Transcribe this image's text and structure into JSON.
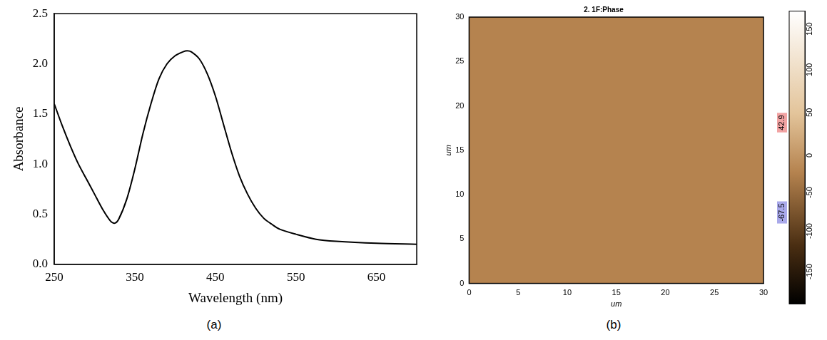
{
  "chart_data": [
    {
      "panel": "(a)",
      "type": "line",
      "x_label": "Wavelength (nm)",
      "y_label": "Absorbance",
      "x": [
        250,
        260,
        270,
        280,
        290,
        300,
        310,
        320,
        325,
        330,
        340,
        350,
        360,
        370,
        380,
        390,
        400,
        410,
        415,
        420,
        430,
        440,
        450,
        460,
        470,
        480,
        490,
        500,
        510,
        520,
        530,
        550,
        575,
        600,
        650,
        700
      ],
      "values": [
        1.6,
        1.38,
        1.18,
        1.0,
        0.85,
        0.7,
        0.55,
        0.43,
        0.41,
        0.45,
        0.65,
        0.95,
        1.3,
        1.6,
        1.85,
        2.0,
        2.08,
        2.12,
        2.13,
        2.12,
        2.05,
        1.9,
        1.68,
        1.4,
        1.12,
        0.88,
        0.7,
        0.56,
        0.46,
        0.4,
        0.35,
        0.3,
        0.25,
        0.23,
        0.21,
        0.2
      ],
      "color": "#000000",
      "xlim": [
        250,
        700
      ],
      "xticks": [
        250,
        350,
        450,
        550,
        650
      ],
      "ylim": [
        0,
        2.5
      ],
      "yticks": [
        {
          "value": 0,
          "label": "0.0"
        },
        0.5,
        {
          "value": 1,
          "label": "1.0"
        },
        1.5,
        {
          "value": 2,
          "label": "2.0"
        },
        2.5
      ],
      "grid": false
    },
    {
      "panel": "(b)",
      "type": "heatmap",
      "title": "2. 1F:Phase",
      "x_label": "um",
      "y_label": "um",
      "xlim": [
        0,
        30
      ],
      "xticks": [
        0,
        5,
        10,
        15,
        20,
        25,
        30
      ],
      "ylim": [
        0,
        30
      ],
      "yticks": [
        0,
        5,
        10,
        15,
        20,
        25,
        30
      ],
      "color": "#b5834f",
      "colorbar_range": [
        -180,
        180
      ],
      "colorbar_ticks": [
        -150,
        -100,
        -50,
        0,
        50,
        100,
        150
      ],
      "colorbar_markers": [
        {
          "value": 42.9,
          "color": "#f2a3a3"
        },
        {
          "value": -67.5,
          "color": "#a9a9ea"
        }
      ],
      "grid": false
    }
  ]
}
